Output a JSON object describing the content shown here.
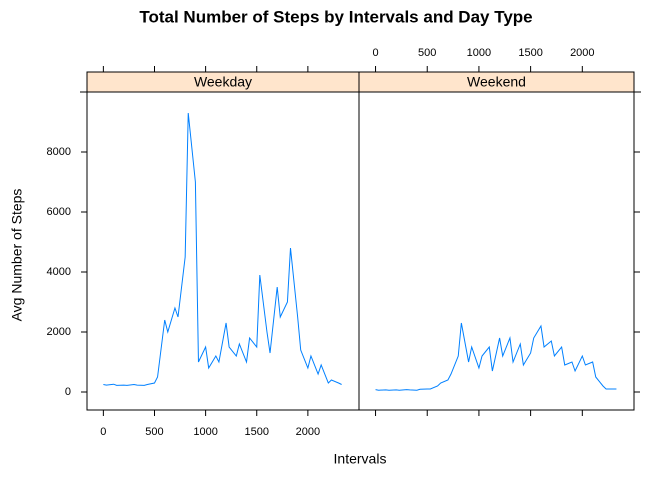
{
  "chart_data": {
    "type": "line",
    "title": "Total Number of Steps by Intervals and Day Type",
    "x_label": "Intervals",
    "y_label": "Avg Number of Steps",
    "x": [
      0,
      30,
      100,
      130,
      200,
      230,
      300,
      330,
      400,
      430,
      500,
      530,
      600,
      630,
      700,
      730,
      800,
      830,
      900,
      930,
      1000,
      1030,
      1100,
      1130,
      1200,
      1230,
      1300,
      1330,
      1400,
      1430,
      1500,
      1530,
      1600,
      1630,
      1700,
      1730,
      1800,
      1830,
      1900,
      1930,
      2000,
      2030,
      2100,
      2130,
      2200,
      2230,
      2300,
      2330
    ],
    "series": [
      {
        "name": "Weekday",
        "color": "#0080ff",
        "values": [
          250,
          230,
          260,
          220,
          230,
          220,
          250,
          230,
          220,
          250,
          300,
          500,
          2400,
          2000,
          2800,
          2500,
          4500,
          9300,
          7000,
          1000,
          1500,
          800,
          1200,
          1000,
          2300,
          1500,
          1200,
          1600,
          1000,
          1800,
          1500,
          3900,
          2000,
          1300,
          3500,
          2500,
          3000,
          4800,
          2500,
          1400,
          800,
          1200,
          600,
          900,
          300,
          400,
          300,
          250
        ]
      },
      {
        "name": "Weekend",
        "color": "#0080ff",
        "values": [
          80,
          60,
          70,
          60,
          70,
          60,
          80,
          70,
          60,
          90,
          100,
          100,
          200,
          300,
          400,
          600,
          1200,
          2300,
          1000,
          1500,
          800,
          1200,
          1500,
          700,
          1800,
          1200,
          1800,
          1000,
          1600,
          900,
          1300,
          1800,
          2200,
          1500,
          1700,
          1200,
          1500,
          900,
          1000,
          700,
          1200,
          900,
          1000,
          500,
          200,
          100,
          100,
          100
        ]
      }
    ],
    "xlim": [
      -160,
      2500
    ],
    "ylim": [
      -600,
      10000
    ],
    "xticks": [
      0,
      500,
      1000,
      1500,
      2000
    ],
    "yticks": [
      0,
      2000,
      4000,
      6000,
      8000
    ],
    "strip_color": "#ffe5cc"
  }
}
